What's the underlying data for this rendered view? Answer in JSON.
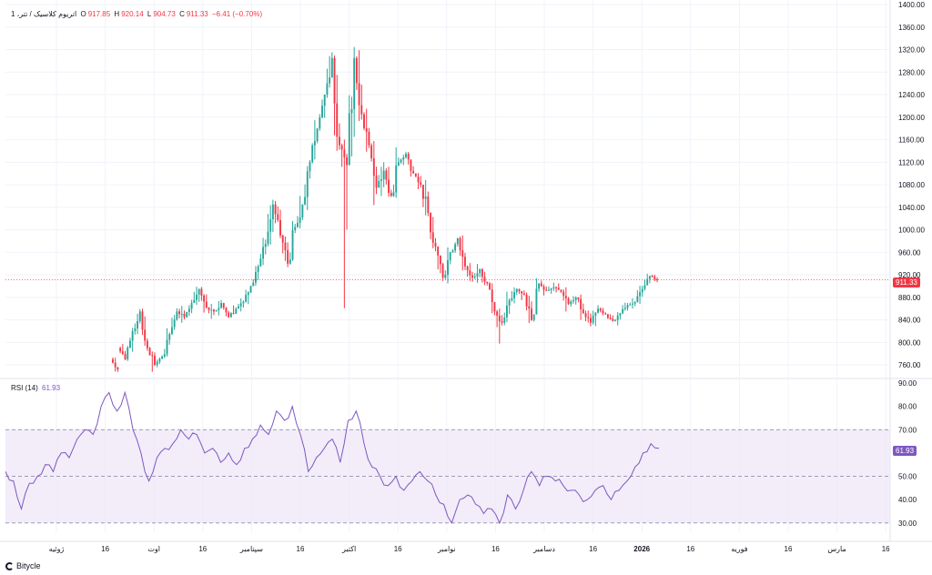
{
  "colors": {
    "up": "#26a69a",
    "down": "#f23645",
    "rsi_line": "#7e57c2",
    "rsi_band": "#ede7f6",
    "grid": "#f0f3fa",
    "price_line": "#f23645"
  },
  "legend": {
    "symbol": "اتریوم کلاسیک / تتر، 1",
    "o_label": "O",
    "o_value": "917.85",
    "h_label": "H",
    "h_value": "920.14",
    "l_label": "L",
    "l_value": "904.73",
    "c_label": "C",
    "c_value": "911.33",
    "change": "−6.41 (−0.70%)"
  },
  "rsi_legend": {
    "label": "RSI (14)",
    "value": "61.93"
  },
  "price_tag": "911.33",
  "rsi_tag": "61.93",
  "brand": {
    "name": "Bitycle",
    "icon": "bitycle-logo-icon"
  },
  "chart_data": [
    {
      "type": "candlestick",
      "price_ticks": [
        "760.00",
        "800.00",
        "840.00",
        "880.00",
        "920.00",
        "960.00",
        "1000.00",
        "1040.00",
        "1080.00",
        "1120.00",
        "1160.00",
        "1200.00",
        "1240.00",
        "1280.00",
        "1320.00",
        "1360.00",
        "1400.00"
      ],
      "ylim": [
        736,
        1400
      ],
      "last_price": 911.33,
      "time_labels": [
        {
          "text": "ژوئیه",
          "bold": false
        },
        {
          "text": "16",
          "bold": false
        },
        {
          "text": "اوت",
          "bold": false
        },
        {
          "text": "16",
          "bold": false
        },
        {
          "text": "سپتامبر",
          "bold": false
        },
        {
          "text": "16",
          "bold": false
        },
        {
          "text": "اکتبر",
          "bold": false
        },
        {
          "text": "16",
          "bold": false
        },
        {
          "text": "نوامبر",
          "bold": false
        },
        {
          "text": "16",
          "bold": false
        },
        {
          "text": "دسامبر",
          "bold": false
        },
        {
          "text": "16",
          "bold": false
        },
        {
          "text": "2026",
          "bold": true
        },
        {
          "text": "16",
          "bold": false
        },
        {
          "text": "فوریه",
          "bold": false
        },
        {
          "text": "16",
          "bold": false
        },
        {
          "text": "مارس",
          "bold": false
        },
        {
          "text": "16",
          "bold": false
        }
      ],
      "ohlc_anchors": [
        [
          770,
          752,
          780,
          745
        ],
        [
          790,
          770,
          800,
          760
        ],
        [
          770,
          820,
          830,
          762
        ],
        [
          820,
          855,
          865,
          810
        ],
        [
          855,
          790,
          862,
          780
        ],
        [
          790,
          760,
          800,
          748
        ],
        [
          760,
          775,
          782,
          752
        ],
        [
          775,
          815,
          825,
          770
        ],
        [
          815,
          855,
          868,
          810
        ],
        [
          855,
          845,
          865,
          835
        ],
        [
          845,
          870,
          885,
          840
        ],
        [
          870,
          895,
          905,
          860
        ],
        [
          895,
          862,
          900,
          852
        ],
        [
          862,
          855,
          870,
          842
        ],
        [
          855,
          870,
          880,
          848
        ],
        [
          870,
          845,
          878,
          838
        ],
        [
          845,
          860,
          870,
          840
        ],
        [
          860,
          872,
          885,
          855
        ],
        [
          872,
          900,
          912,
          868
        ],
        [
          900,
          935,
          945,
          895
        ],
        [
          935,
          975,
          990,
          930
        ],
        [
          975,
          1045,
          1065,
          968
        ],
        [
          1045,
          990,
          1055,
          975
        ],
        [
          990,
          940,
          995,
          925
        ],
        [
          940,
          1005,
          1020,
          935
        ],
        [
          1005,
          1045,
          1060,
          998
        ],
        [
          1045,
          1120,
          1130,
          1035
        ],
        [
          1120,
          1180,
          1195,
          1110
        ],
        [
          1180,
          1240,
          1250,
          1160
        ],
        [
          1240,
          1305,
          1360,
          1230
        ],
        [
          1305,
          1150,
          1315,
          1080
        ],
        [
          1150,
          1115,
          1160,
          850
        ],
        [
          1115,
          1305,
          1375,
          1105
        ],
        [
          1305,
          1205,
          1320,
          1180
        ],
        [
          1205,
          1150,
          1215,
          1120
        ],
        [
          1150,
          1075,
          1160,
          1030
        ],
        [
          1075,
          1105,
          1145,
          1060
        ],
        [
          1105,
          1060,
          1112,
          1050
        ],
        [
          1060,
          1120,
          1150,
          1055
        ],
        [
          1120,
          1135,
          1145,
          1110
        ],
        [
          1135,
          1100,
          1142,
          1088
        ],
        [
          1100,
          1080,
          1105,
          1070
        ],
        [
          1080,
          1030,
          1090,
          1020
        ],
        [
          1030,
          970,
          1035,
          955
        ],
        [
          970,
          915,
          980,
          878
        ],
        [
          915,
          960,
          985,
          905
        ],
        [
          960,
          985,
          1000,
          955
        ],
        [
          985,
          935,
          990,
          920
        ],
        [
          935,
          915,
          945,
          900
        ],
        [
          915,
          930,
          940,
          905
        ],
        [
          930,
          905,
          935,
          890
        ],
        [
          905,
          855,
          915,
          840
        ],
        [
          855,
          835,
          860,
          792
        ],
        [
          835,
          875,
          890,
          828
        ],
        [
          875,
          895,
          910,
          868
        ],
        [
          895,
          885,
          902,
          875
        ],
        [
          885,
          840,
          890,
          800
        ],
        [
          840,
          905,
          920,
          835
        ],
        [
          905,
          892,
          912,
          880
        ],
        [
          892,
          898,
          920,
          885
        ],
        [
          898,
          890,
          905,
          880
        ],
        [
          890,
          868,
          898,
          855
        ],
        [
          868,
          880,
          890,
          860
        ],
        [
          880,
          852,
          885,
          840
        ],
        [
          852,
          835,
          862,
          820
        ],
        [
          835,
          860,
          870,
          828
        ],
        [
          860,
          850,
          866,
          842
        ],
        [
          850,
          838,
          858,
          828
        ],
        [
          838,
          852,
          862,
          825
        ],
        [
          852,
          866,
          872,
          845
        ],
        [
          866,
          872,
          880,
          860
        ],
        [
          872,
          895,
          905,
          868
        ],
        [
          895,
          918,
          922,
          890
        ],
        [
          918,
          911.33,
          920.14,
          904.73
        ]
      ]
    },
    {
      "type": "line",
      "name": "RSI (14)",
      "ylim": [
        26,
        92
      ],
      "rsi_ticks": [
        "30.00",
        "40.00",
        "50.00",
        "60.00",
        "70.00",
        "80.00",
        "90.00"
      ],
      "levels": {
        "upper": 70,
        "middle": 50,
        "lower": 30
      },
      "last_value": 61.93,
      "rsi_anchors": [
        52,
        48,
        36,
        47,
        50,
        55,
        52,
        60,
        58,
        66,
        70,
        68,
        80,
        86,
        78,
        86,
        70,
        60,
        48,
        58,
        62,
        64,
        70,
        66,
        68,
        60,
        62,
        56,
        60,
        55,
        62,
        66,
        72,
        68,
        78,
        74,
        80,
        68,
        52,
        58,
        62,
        66,
        56,
        74,
        78,
        64,
        54,
        50,
        46,
        50,
        44,
        48,
        52,
        48,
        42,
        38,
        30,
        40,
        42,
        38,
        34,
        36,
        30,
        42,
        36,
        44,
        52,
        46,
        50,
        48,
        46,
        44,
        42,
        40,
        44,
        46,
        40,
        44,
        48,
        54,
        60,
        64,
        62
      ]
    }
  ]
}
